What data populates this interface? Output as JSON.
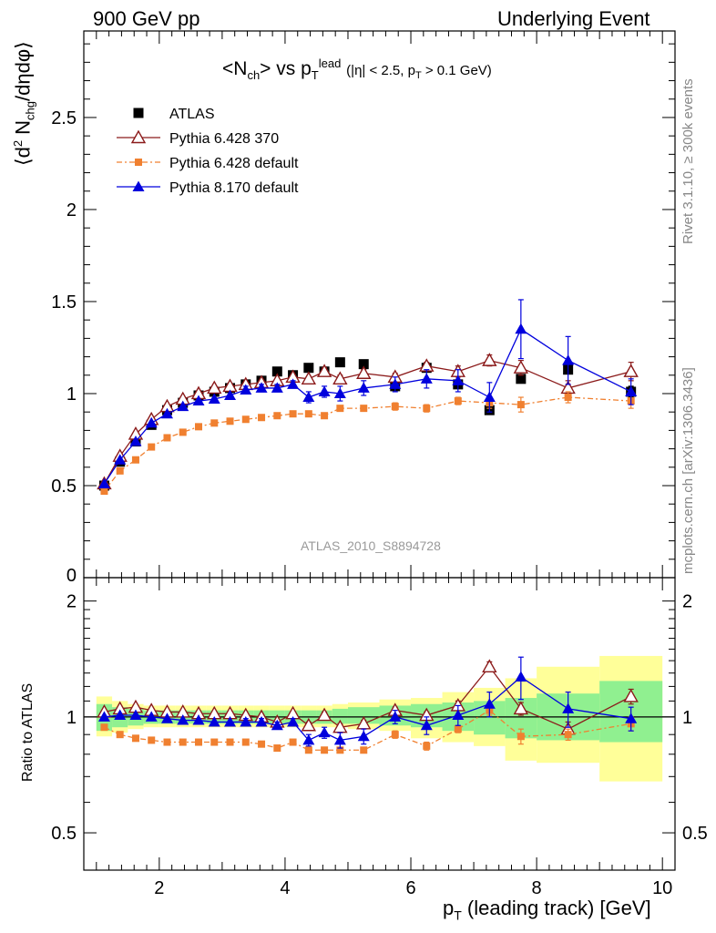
{
  "header": {
    "left": "900 GeV pp",
    "right": "Underlying Event"
  },
  "title": "<N_ch> vs p_T^lead (|η| < 2.5, p_T > 0.1 GeV)",
  "watermark": "ATLAS_2010_S8894728",
  "side_labels": {
    "rivet": "Rivet 3.1.10, ≥ 300k events",
    "mcplots": "mcplots.cern.ch [arXiv:1306.3436]"
  },
  "axes": {
    "ylabel_top": "⟨d² N_chg/dηdφ⟩",
    "ylabel_bottom": "Ratio to ATLAS",
    "xlabel": "p_T (leading track) [GeV]",
    "x_ticks": [
      "2",
      "4",
      "6",
      "8",
      "10"
    ],
    "y_ticks_top": [
      "0",
      "0.5",
      "1",
      "1.5",
      "2",
      "2.5"
    ],
    "y_ticks_bottom": [
      "0.5",
      "1",
      "2"
    ]
  },
  "colors": {
    "atlas": "#000000",
    "py6_370": "#8b1a1a",
    "py6_default": "#f08030",
    "py8_default": "#0000dd",
    "band_inner": "#90f090",
    "band_outer": "#ffff99"
  },
  "chart_data": [
    {
      "type": "scatter",
      "panel": "main",
      "xlim": [
        0.8,
        10.2
      ],
      "ylim": [
        0,
        2.97
      ],
      "x": [
        1.125,
        1.375,
        1.625,
        1.875,
        2.125,
        2.375,
        2.625,
        2.875,
        3.125,
        3.375,
        3.625,
        3.875,
        4.125,
        4.375,
        4.625,
        4.875,
        5.25,
        5.75,
        6.25,
        6.75,
        7.25,
        7.75,
        8.5,
        9.5
      ],
      "series": [
        {
          "name": "ATLAS",
          "marker": "square",
          "values": [
            0.5,
            0.63,
            0.74,
            0.83,
            0.91,
            0.95,
            0.99,
            1.01,
            1.03,
            1.05,
            1.07,
            1.12,
            1.1,
            1.14,
            1.12,
            1.17,
            1.16,
            1.04,
            1.14,
            1.05,
            0.91,
            1.08,
            1.13,
            1.01
          ],
          "errors": [
            0.01,
            0.01,
            0.01,
            0.01,
            0.01,
            0.01,
            0.01,
            0.01,
            0.01,
            0.01,
            0.01,
            0.01,
            0.01,
            0.01,
            0.01,
            0.01,
            0.01,
            0.01,
            0.01,
            0.01,
            0.02,
            0.02,
            0.02,
            0.03
          ]
        },
        {
          "name": "Pythia 6.428 370",
          "marker": "triangle-open",
          "values": [
            0.51,
            0.66,
            0.78,
            0.86,
            0.93,
            0.97,
            1.0,
            1.03,
            1.04,
            1.05,
            1.06,
            1.07,
            1.09,
            1.08,
            1.12,
            1.08,
            1.11,
            1.09,
            1.15,
            1.12,
            1.18,
            1.14,
            1.03,
            1.12
          ],
          "errors": [
            0.01,
            0.01,
            0.01,
            0.01,
            0.01,
            0.01,
            0.01,
            0.01,
            0.01,
            0.01,
            0.01,
            0.01,
            0.01,
            0.01,
            0.02,
            0.02,
            0.02,
            0.02,
            0.02,
            0.03,
            0.03,
            0.04,
            0.04,
            0.05
          ]
        },
        {
          "name": "Pythia 6.428 default",
          "marker": "square-small",
          "values": [
            0.47,
            0.58,
            0.64,
            0.71,
            0.76,
            0.79,
            0.82,
            0.84,
            0.85,
            0.86,
            0.87,
            0.88,
            0.89,
            0.89,
            0.88,
            0.92,
            0.92,
            0.93,
            0.92,
            0.96,
            0.95,
            0.94,
            0.98,
            0.96
          ],
          "errors": [
            0.01,
            0.01,
            0.01,
            0.01,
            0.01,
            0.01,
            0.01,
            0.01,
            0.01,
            0.01,
            0.01,
            0.01,
            0.01,
            0.01,
            0.01,
            0.01,
            0.01,
            0.02,
            0.02,
            0.02,
            0.03,
            0.04,
            0.03,
            0.04
          ]
        },
        {
          "name": "Pythia 8.170 default",
          "marker": "triangle",
          "values": [
            0.51,
            0.64,
            0.74,
            0.84,
            0.89,
            0.93,
            0.96,
            0.97,
            0.99,
            1.02,
            1.03,
            1.03,
            1.05,
            0.98,
            1.01,
            1.0,
            1.03,
            1.05,
            1.08,
            1.07,
            0.98,
            1.35,
            1.18,
            1.01
          ],
          "errors": [
            0.01,
            0.01,
            0.01,
            0.01,
            0.01,
            0.01,
            0.01,
            0.01,
            0.01,
            0.02,
            0.02,
            0.02,
            0.02,
            0.03,
            0.03,
            0.04,
            0.04,
            0.04,
            0.05,
            0.06,
            0.08,
            0.16,
            0.13,
            0.07
          ]
        }
      ]
    },
    {
      "type": "scatter",
      "panel": "ratio",
      "ylim": [
        0.4,
        2.3
      ],
      "ylog": true,
      "bands": {
        "x_edges": [
          1.0,
          1.25,
          1.5,
          1.75,
          2.0,
          2.25,
          2.5,
          2.75,
          3.0,
          3.25,
          3.5,
          3.75,
          4.0,
          4.25,
          4.5,
          4.75,
          5.0,
          5.5,
          6.0,
          6.5,
          7.0,
          7.5,
          8.0,
          9.0,
          10.0
        ],
        "inner_lo": [
          0.92,
          0.94,
          0.95,
          0.96,
          0.96,
          0.96,
          0.96,
          0.96,
          0.96,
          0.96,
          0.96,
          0.96,
          0.96,
          0.96,
          0.96,
          0.96,
          0.96,
          0.95,
          0.94,
          0.92,
          0.9,
          0.88,
          0.87,
          0.86
        ],
        "inner_hi": [
          1.08,
          1.06,
          1.05,
          1.04,
          1.04,
          1.04,
          1.04,
          1.04,
          1.04,
          1.04,
          1.04,
          1.04,
          1.04,
          1.04,
          1.04,
          1.05,
          1.06,
          1.07,
          1.08,
          1.09,
          1.1,
          1.12,
          1.15,
          1.24
        ],
        "outer_lo": [
          0.89,
          0.91,
          0.93,
          0.94,
          0.94,
          0.94,
          0.94,
          0.94,
          0.94,
          0.94,
          0.94,
          0.94,
          0.94,
          0.94,
          0.94,
          0.94,
          0.93,
          0.92,
          0.88,
          0.86,
          0.84,
          0.77,
          0.76,
          0.68
        ],
        "outer_hi": [
          1.13,
          1.1,
          1.08,
          1.07,
          1.07,
          1.07,
          1.07,
          1.07,
          1.07,
          1.07,
          1.07,
          1.07,
          1.07,
          1.07,
          1.07,
          1.08,
          1.09,
          1.11,
          1.12,
          1.16,
          1.19,
          1.26,
          1.35,
          1.44
        ]
      },
      "series": [
        {
          "name": "Pythia 6.428 370",
          "values": [
            1.03,
            1.05,
            1.06,
            1.04,
            1.03,
            1.03,
            1.02,
            1.02,
            1.02,
            1.01,
            1.0,
            0.97,
            1.02,
            0.95,
            1.01,
            0.94,
            0.96,
            1.04,
            1.01,
            1.07,
            1.35,
            1.05,
            0.93,
            1.13
          ],
          "errors": [
            0.01,
            0.01,
            0.01,
            0.01,
            0.01,
            0.01,
            0.01,
            0.01,
            0.01,
            0.01,
            0.01,
            0.01,
            0.01,
            0.02,
            0.02,
            0.02,
            0.02,
            0.02,
            0.02,
            0.03,
            0.04,
            0.04,
            0.04,
            0.05
          ]
        },
        {
          "name": "Pythia 6.428 default",
          "values": [
            0.94,
            0.9,
            0.88,
            0.87,
            0.86,
            0.86,
            0.86,
            0.86,
            0.86,
            0.86,
            0.85,
            0.83,
            0.86,
            0.82,
            0.82,
            0.82,
            0.82,
            0.9,
            0.84,
            0.93,
            1.04,
            0.89,
            0.9,
            0.96
          ],
          "errors": [
            0.01,
            0.01,
            0.01,
            0.01,
            0.01,
            0.01,
            0.01,
            0.01,
            0.01,
            0.01,
            0.01,
            0.01,
            0.01,
            0.01,
            0.01,
            0.01,
            0.01,
            0.02,
            0.02,
            0.02,
            0.03,
            0.04,
            0.03,
            0.04
          ]
        },
        {
          "name": "Pythia 8.170 default",
          "values": [
            1.0,
            1.01,
            1.01,
            1.0,
            0.99,
            0.98,
            0.98,
            0.97,
            0.97,
            0.97,
            0.97,
            0.95,
            0.97,
            0.87,
            0.91,
            0.87,
            0.89,
            1.0,
            0.95,
            1.01,
            1.08,
            1.27,
            1.05,
            0.99
          ],
          "errors": [
            0.01,
            0.01,
            0.01,
            0.01,
            0.01,
            0.01,
            0.01,
            0.01,
            0.01,
            0.02,
            0.02,
            0.02,
            0.02,
            0.03,
            0.03,
            0.04,
            0.04,
            0.04,
            0.05,
            0.06,
            0.08,
            0.16,
            0.11,
            0.07
          ]
        }
      ]
    }
  ]
}
